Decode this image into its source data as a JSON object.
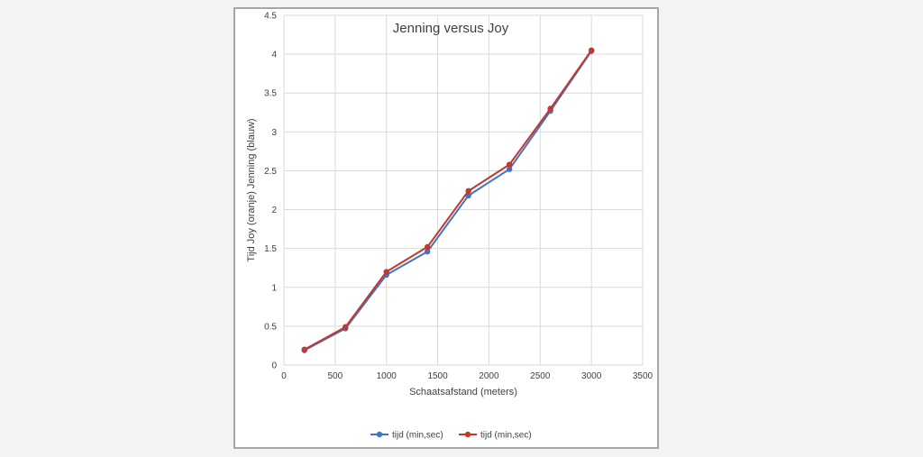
{
  "chart_data": {
    "type": "line",
    "title": "Jenning versus Joy",
    "xlabel": "Schaatsafstand (meters)",
    "ylabel": "Tijd Joy (oranje) Jenning (blauw)",
    "xlim": [
      0,
      3500
    ],
    "ylim": [
      0,
      4.5
    ],
    "x_ticks": [
      0,
      500,
      1000,
      1500,
      2000,
      2500,
      3000,
      3500
    ],
    "y_ticks": [
      "0",
      "0.5",
      "1",
      "1.5",
      "2",
      "2.5",
      "3",
      "3.5",
      "4",
      "4.5"
    ],
    "grid": true,
    "legend_position": "bottom",
    "series": [
      {
        "name": "tijd (min,sec)",
        "color": "#4472c4",
        "x": [
          200,
          600,
          1000,
          1400,
          1800,
          2200,
          2600,
          3000
        ],
        "values": [
          0.19,
          0.47,
          1.16,
          1.46,
          2.18,
          2.52,
          3.27,
          4.04
        ]
      },
      {
        "name": "tijd (min,sec)",
        "color": "#c0392b",
        "x": [
          200,
          600,
          1000,
          1400,
          1800,
          2200,
          2600,
          3000
        ],
        "values": [
          0.2,
          0.49,
          1.2,
          1.52,
          2.24,
          2.58,
          3.3,
          4.05
        ]
      }
    ]
  }
}
